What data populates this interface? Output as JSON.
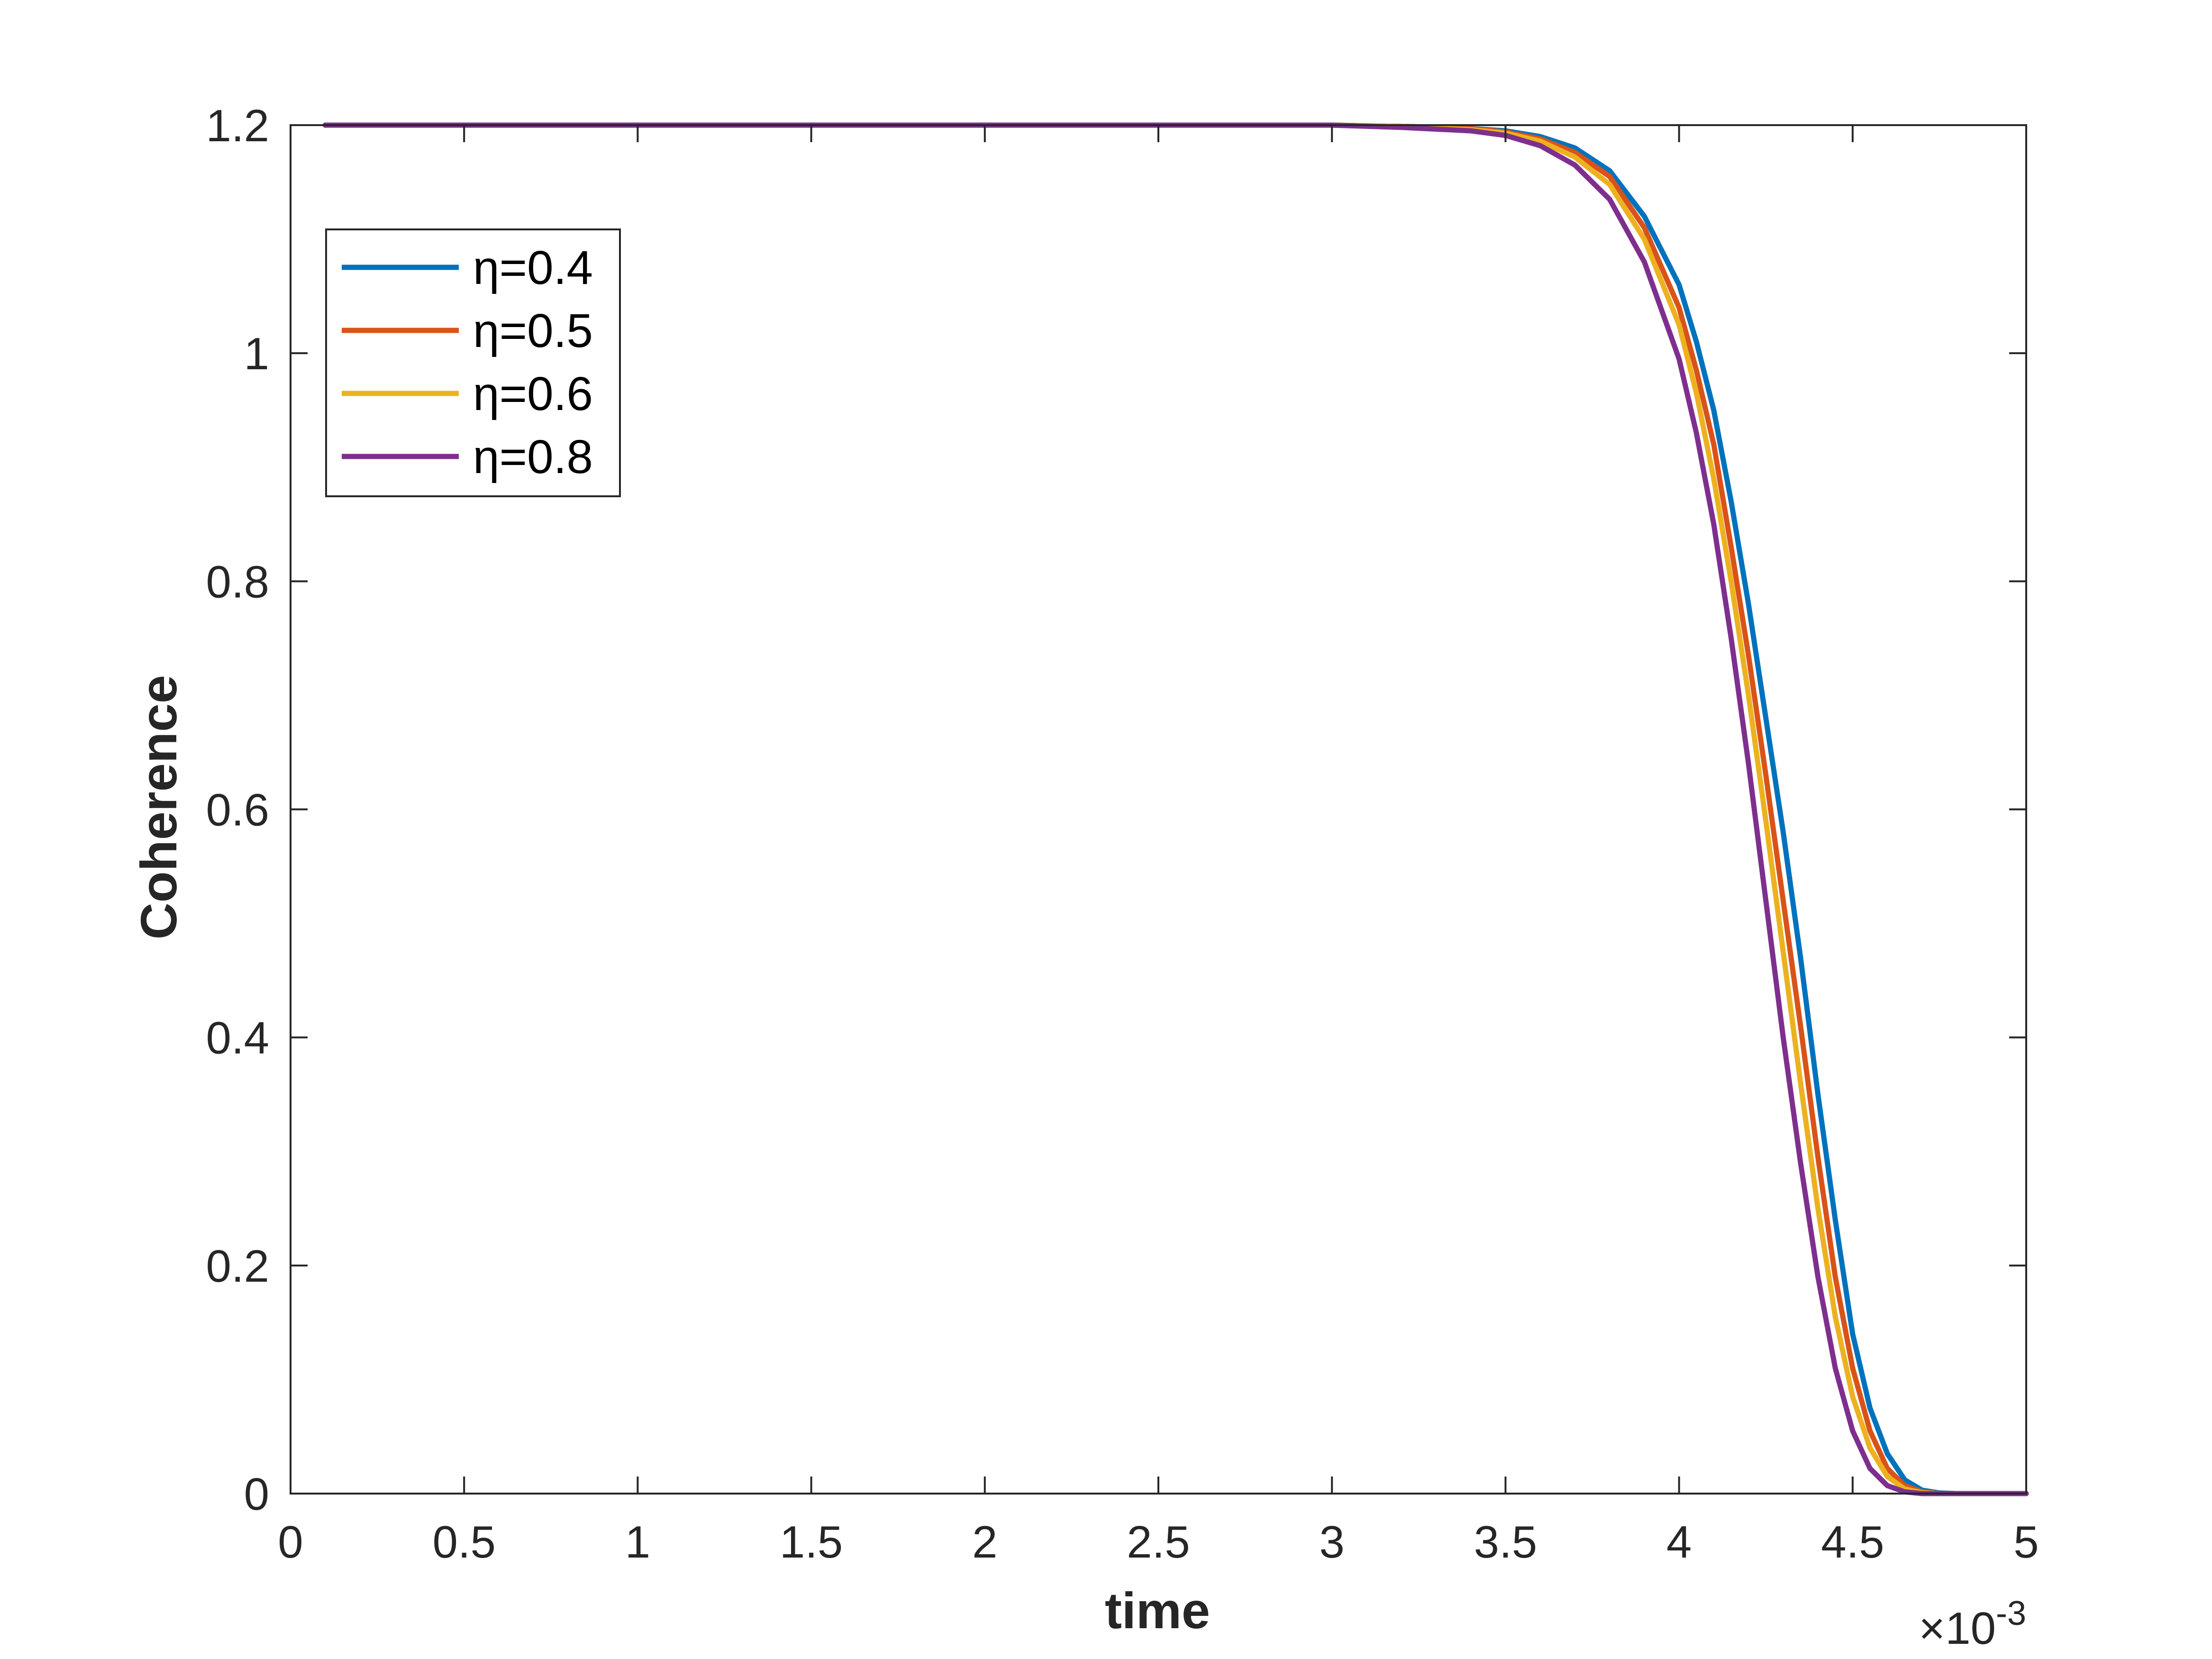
{
  "chart_data": {
    "type": "line",
    "title": "",
    "xlabel": "time",
    "ylabel": "Coherence",
    "x_multiplier_label": "×10",
    "x_multiplier_exponent": "-3",
    "xlim": [
      0,
      5
    ],
    "ylim": [
      0,
      1.2
    ],
    "xticks": [
      0,
      0.5,
      1,
      1.5,
      2,
      2.5,
      3,
      3.5,
      4,
      4.5,
      5
    ],
    "xtick_labels": [
      "0",
      "0.5",
      "1",
      "1.5",
      "2",
      "2.5",
      "3",
      "3.5",
      "4",
      "4.5",
      "5"
    ],
    "yticks": [
      0,
      0.2,
      0.4,
      0.6,
      0.8,
      1,
      1.2
    ],
    "ytick_labels": [
      "0",
      "0.2",
      "0.4",
      "0.6",
      "0.8",
      "1",
      "1.2"
    ],
    "grid": false,
    "legend_position": "top-left",
    "x": [
      0.1,
      0.5,
      1.0,
      1.5,
      2.0,
      2.5,
      3.0,
      3.2,
      3.4,
      3.5,
      3.6,
      3.7,
      3.8,
      3.9,
      4.0,
      4.05,
      4.1,
      4.15,
      4.2,
      4.25,
      4.3,
      4.35,
      4.4,
      4.45,
      4.5,
      4.55,
      4.6,
      4.65,
      4.7,
      4.75,
      4.8,
      4.9,
      5.0
    ],
    "series": [
      {
        "name": "η=0.4",
        "color": "#0072BD",
        "values": [
          1.2,
          1.2,
          1.2,
          1.2,
          1.2,
          1.2,
          1.2,
          1.199,
          1.197,
          1.195,
          1.19,
          1.18,
          1.16,
          1.12,
          1.06,
          1.01,
          0.95,
          0.87,
          0.78,
          0.68,
          0.58,
          0.47,
          0.35,
          0.24,
          0.14,
          0.075,
          0.035,
          0.012,
          0.003,
          0.0005,
          0.0,
          0.0,
          0.0
        ]
      },
      {
        "name": "η=0.5",
        "color": "#D95319",
        "values": [
          1.2,
          1.2,
          1.2,
          1.2,
          1.2,
          1.2,
          1.2,
          1.199,
          1.197,
          1.194,
          1.188,
          1.176,
          1.155,
          1.11,
          1.04,
          0.985,
          0.92,
          0.83,
          0.735,
          0.63,
          0.52,
          0.41,
          0.295,
          0.19,
          0.11,
          0.055,
          0.022,
          0.007,
          0.0015,
          0.0,
          0.0,
          0.0,
          0.0
        ]
      },
      {
        "name": "η=0.6",
        "color": "#EDB120",
        "values": [
          1.2,
          1.2,
          1.2,
          1.2,
          1.2,
          1.2,
          1.2,
          1.199,
          1.196,
          1.193,
          1.186,
          1.172,
          1.148,
          1.1,
          1.025,
          0.965,
          0.89,
          0.8,
          0.7,
          0.59,
          0.475,
          0.36,
          0.25,
          0.155,
          0.085,
          0.04,
          0.015,
          0.004,
          0.0008,
          0.0,
          0.0,
          0.0,
          0.0
        ]
      },
      {
        "name": "η=0.8",
        "color": "#7E2F8E",
        "values": [
          1.2,
          1.2,
          1.2,
          1.2,
          1.2,
          1.2,
          1.2,
          1.198,
          1.195,
          1.191,
          1.182,
          1.165,
          1.135,
          1.08,
          0.995,
          0.93,
          0.85,
          0.75,
          0.64,
          0.52,
          0.4,
          0.29,
          0.19,
          0.11,
          0.055,
          0.022,
          0.007,
          0.0015,
          0.0,
          0.0,
          0.0,
          0.0,
          0.0
        ]
      }
    ]
  }
}
